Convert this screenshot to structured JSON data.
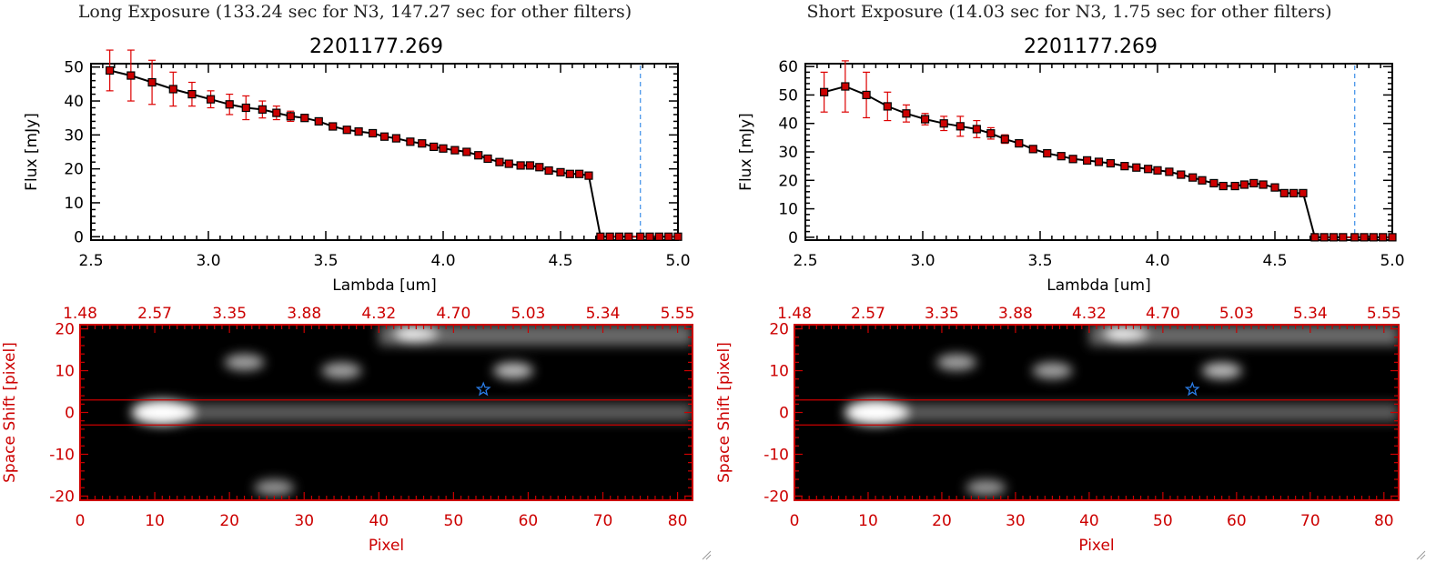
{
  "panels": [
    {
      "heading": "Long Exposure (133.24 sec for N3, 147.27 sec for other filters)",
      "spectrum": {
        "title": "2201177.269",
        "xlabel": "Lambda [um]",
        "ylabel": "Flux [mJy]",
        "xticks": [
          "2.5",
          "3.0",
          "3.5",
          "4.0",
          "4.5",
          "5.0"
        ],
        "yticks": [
          "0",
          "10",
          "20",
          "30",
          "40",
          "50"
        ],
        "yticks_num": [
          0,
          10,
          20,
          30,
          40,
          50
        ]
      },
      "image": {
        "xlabel": "Pixel",
        "ylabel": "Space Shift [pixel]",
        "xticks": [
          "0",
          "10",
          "20",
          "30",
          "40",
          "50",
          "60",
          "70",
          "80"
        ],
        "yticks": [
          "20",
          "10",
          "0",
          "-10",
          "-20"
        ],
        "top_ticks": [
          "1.48",
          "2.57",
          "3.35",
          "3.88",
          "4.32",
          "4.70",
          "5.03",
          "5.34",
          "5.55"
        ]
      }
    },
    {
      "heading": "Short Exposure (14.03 sec for N3, 1.75 sec for other filters)",
      "spectrum": {
        "title": "2201177.269",
        "xlabel": "Lambda [um]",
        "ylabel": "Flux [mJy]",
        "xticks": [
          "2.5",
          "3.0",
          "3.5",
          "4.0",
          "4.5",
          "5.0"
        ],
        "yticks": [
          "0",
          "10",
          "20",
          "30",
          "40",
          "50",
          "60"
        ],
        "yticks_num": [
          0,
          10,
          20,
          30,
          40,
          50,
          60
        ]
      },
      "image": {
        "xlabel": "Pixel",
        "ylabel": "Space Shift [pixel]",
        "xticks": [
          "0",
          "10",
          "20",
          "30",
          "40",
          "50",
          "60",
          "70",
          "80"
        ],
        "yticks": [
          "20",
          "10",
          "0",
          "-10",
          "-20"
        ],
        "top_ticks": [
          "1.48",
          "2.57",
          "3.35",
          "3.88",
          "4.32",
          "4.70",
          "5.03",
          "5.34",
          "5.55"
        ]
      }
    }
  ],
  "colors": {
    "axis": "#000000",
    "errorbar": "#dd0000",
    "marker": "#cc0000",
    "vline": "#3a8ee8",
    "image_axis": "#cc0000",
    "star": "#2a7de8"
  },
  "icons": {
    "star_marker": "star-icon",
    "resize_handle": "resize-grip-icon"
  },
  "chart_data": [
    {
      "type": "line",
      "title": "2201177.269",
      "xlabel": "Lambda [um]",
      "ylabel": "Flux [mJy]",
      "xlim": [
        2.5,
        5.0
      ],
      "ylim": [
        -1,
        51
      ],
      "vline_x": 4.84,
      "x": [
        2.58,
        2.67,
        2.76,
        2.85,
        2.93,
        3.01,
        3.09,
        3.16,
        3.23,
        3.29,
        3.35,
        3.41,
        3.47,
        3.53,
        3.59,
        3.64,
        3.7,
        3.75,
        3.8,
        3.86,
        3.91,
        3.96,
        4.0,
        4.05,
        4.1,
        4.15,
        4.19,
        4.24,
        4.28,
        4.33,
        4.37,
        4.41,
        4.45,
        4.5,
        4.54,
        4.58,
        4.62,
        4.67,
        4.71,
        4.75,
        4.79,
        4.84,
        4.88,
        4.92,
        4.96,
        5.0
      ],
      "y": [
        49,
        47.5,
        45.5,
        43.5,
        42,
        40.5,
        39,
        38,
        37.5,
        36.5,
        35.5,
        35,
        34,
        32.5,
        31.5,
        31,
        30.5,
        29.5,
        29,
        28,
        27.5,
        26.5,
        26,
        25.5,
        25,
        24,
        23,
        22,
        21.5,
        21,
        21,
        20.5,
        19.5,
        19,
        18.5,
        18.5,
        18,
        0,
        0,
        0,
        0,
        0,
        0,
        0,
        0,
        0
      ],
      "yerr": [
        6,
        7.5,
        6.5,
        5,
        3.5,
        2.5,
        3,
        3.5,
        2.5,
        2,
        1.5,
        1,
        0.5,
        0.5,
        0.5,
        0.5,
        0.5,
        0.5,
        0.5,
        0.5,
        0.5,
        0.5,
        0.5,
        0.5,
        0.5,
        0.5,
        0.5,
        0.5,
        0.5,
        0.5,
        0.5,
        0.5,
        0.5,
        0.5,
        0.5,
        0.5,
        0.5,
        0,
        0,
        0,
        0,
        0,
        0,
        0,
        0,
        0
      ]
    },
    {
      "type": "line",
      "title": "2201177.269",
      "xlabel": "Lambda [um]",
      "ylabel": "Flux [mJy]",
      "xlim": [
        2.5,
        5.0
      ],
      "ylim": [
        -1,
        61
      ],
      "vline_x": 4.84,
      "x": [
        2.58,
        2.67,
        2.76,
        2.85,
        2.93,
        3.01,
        3.09,
        3.16,
        3.23,
        3.29,
        3.35,
        3.41,
        3.47,
        3.53,
        3.59,
        3.64,
        3.7,
        3.75,
        3.8,
        3.86,
        3.91,
        3.96,
        4.0,
        4.05,
        4.1,
        4.15,
        4.19,
        4.24,
        4.28,
        4.33,
        4.37,
        4.41,
        4.45,
        4.5,
        4.54,
        4.58,
        4.62,
        4.67,
        4.71,
        4.75,
        4.79,
        4.84,
        4.88,
        4.92,
        4.96,
        5.0
      ],
      "y": [
        51,
        53,
        50,
        46,
        43.5,
        41.5,
        40,
        39,
        38,
        36.5,
        34.5,
        33,
        31,
        29.5,
        28.5,
        27.5,
        27,
        26.5,
        26,
        25,
        24.5,
        24,
        23.5,
        23,
        22,
        21,
        20,
        19,
        18,
        18,
        18.5,
        19,
        18.5,
        17.5,
        15.5,
        15.5,
        15.5,
        0,
        0,
        0,
        0,
        0,
        0,
        0,
        0,
        0
      ],
      "yerr": [
        7,
        9,
        8,
        5,
        3,
        2,
        2.5,
        3.5,
        3,
        2,
        1.5,
        1,
        0.5,
        0.5,
        0.5,
        0.5,
        0.5,
        0.5,
        0.5,
        0.5,
        0.5,
        0.5,
        0.5,
        0.5,
        0.5,
        0.5,
        0.5,
        0.5,
        0.5,
        0.5,
        0.5,
        0.5,
        0.5,
        0.5,
        0.5,
        0.5,
        0.5,
        0,
        0,
        0,
        0,
        0,
        0,
        0,
        0,
        0
      ]
    },
    {
      "type": "heatmap",
      "xlabel": "Pixel",
      "ylabel": "Space Shift [pixel]",
      "xlim": [
        0,
        82
      ],
      "ylim": [
        -21,
        21
      ],
      "top_axis_ticks": [
        "1.48",
        "2.57",
        "3.35",
        "3.88",
        "4.32",
        "4.70",
        "5.03",
        "5.34",
        "5.55"
      ],
      "aperture_y": [
        -3,
        3
      ],
      "star_marker": [
        54,
        5.5
      ],
      "blobs": [
        {
          "x": 11,
          "y": 0,
          "intensity": 1.0
        },
        {
          "x": 45,
          "y": 19,
          "intensity": 0.8
        },
        {
          "x": 58,
          "y": 10,
          "intensity": 0.6
        },
        {
          "x": 22,
          "y": 12,
          "intensity": 0.45
        },
        {
          "x": 35,
          "y": 10,
          "intensity": 0.45
        },
        {
          "x": 26,
          "y": -18,
          "intensity": 0.35
        }
      ]
    },
    {
      "type": "heatmap",
      "xlabel": "Pixel",
      "ylabel": "Space Shift [pixel]",
      "xlim": [
        0,
        82
      ],
      "ylim": [
        -21,
        21
      ],
      "top_axis_ticks": [
        "1.48",
        "2.57",
        "3.35",
        "3.88",
        "4.32",
        "4.70",
        "5.03",
        "5.34",
        "5.55"
      ],
      "aperture_y": [
        -3,
        3
      ],
      "star_marker": [
        54,
        5.5
      ],
      "blobs": [
        {
          "x": 11,
          "y": 0,
          "intensity": 1.0
        },
        {
          "x": 45,
          "y": 19,
          "intensity": 0.8
        },
        {
          "x": 58,
          "y": 10,
          "intensity": 0.6
        },
        {
          "x": 22,
          "y": 12,
          "intensity": 0.45
        },
        {
          "x": 35,
          "y": 10,
          "intensity": 0.45
        },
        {
          "x": 26,
          "y": -18,
          "intensity": 0.35
        }
      ]
    }
  ]
}
